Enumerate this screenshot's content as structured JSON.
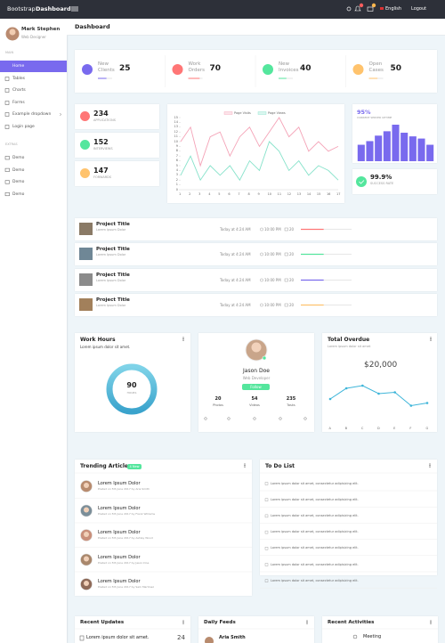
{
  "header": {
    "brand_light": "Bootstrap",
    "brand_bold": "Dashboard",
    "language": "English",
    "logout": "Logout"
  },
  "sidebar": {
    "user_name": "Mark Stephen",
    "user_role": "Web Designer",
    "main_heading": "MAIN",
    "main_items": [
      "Home",
      "Tables",
      "Charts",
      "Forms",
      "Example dropdown",
      "Login page"
    ],
    "extras_heading": "EXTRAS",
    "extras_items": [
      "Demo",
      "Demo",
      "Demo",
      "Demo"
    ]
  },
  "page_title": "Dashboard",
  "stats": [
    {
      "label": "New Clients",
      "value": 25,
      "color": "#796aee",
      "progress": 60
    },
    {
      "label": "Work Orders",
      "value": 70,
      "color": "#ff7676",
      "progress": 80
    },
    {
      "label": "New Invoices",
      "value": 40,
      "color": "#54e69d",
      "progress": 55
    },
    {
      "label": "Open Cases",
      "value": 50,
      "color": "#ffc36d",
      "progress": 60
    }
  ],
  "mini_stats": [
    {
      "value": 234,
      "label": "APPLICATIONS",
      "color": "#ff7676"
    },
    {
      "value": 152,
      "label": "INTERVIEWS",
      "color": "#54e69d"
    },
    {
      "value": 147,
      "label": "FORWARDS",
      "color": "#ffc36d"
    }
  ],
  "line_chart": {
    "type": "line",
    "x": [
      1,
      2,
      3,
      4,
      5,
      6,
      7,
      8,
      9,
      10,
      11,
      12,
      13,
      14,
      15,
      16,
      17
    ],
    "xlim": [
      1,
      17
    ],
    "ylim": [
      0,
      15
    ],
    "yticks": [
      0,
      1,
      2,
      3,
      4,
      5,
      6,
      7,
      8,
      9,
      10,
      11,
      12,
      13,
      14,
      15
    ],
    "series": [
      {
        "name": "Page Visits",
        "color": "#f4a3b7",
        "values": [
          10,
          13,
          5,
          11,
          12,
          7,
          11,
          13,
          9,
          12,
          15,
          11,
          13,
          8,
          10,
          8,
          9
        ]
      },
      {
        "name": "Page Views",
        "color": "#86e2ca",
        "values": [
          3,
          7,
          2,
          5,
          3,
          5,
          2,
          6,
          4,
          10,
          8,
          4,
          6,
          3,
          5,
          4,
          2
        ]
      }
    ]
  },
  "uptime": {
    "type": "bar",
    "value_label": "95%",
    "label": "CURRENT SERVER UPTIME",
    "values": [
      45,
      55,
      70,
      82,
      100,
      78,
      68,
      62,
      45
    ],
    "ylim": [
      0,
      100
    ],
    "color": "#796aee"
  },
  "success": {
    "value_label": "99.9%",
    "label": "SUCCESS RATE"
  },
  "projects": [
    {
      "title": "Project Title",
      "subtitle": "Lorem Ipsum Dolor",
      "date": "Today at 4:24 AM",
      "time": "10:00 PM",
      "comments": 20,
      "progress": 45,
      "color": "#ff7676"
    },
    {
      "title": "Project Title",
      "subtitle": "Lorem Ipsum Dolor",
      "date": "Today at 4:24 AM",
      "time": "10:00 PM",
      "comments": 20,
      "progress": 45,
      "color": "#54e69d"
    },
    {
      "title": "Project Title",
      "subtitle": "Lorem Ipsum Dolor",
      "date": "Today at 4:24 AM",
      "time": "10:00 PM",
      "comments": 20,
      "progress": 45,
      "color": "#796aee"
    },
    {
      "title": "Project Title",
      "subtitle": "Lorem Ipsum Dolor",
      "date": "Today at 4:24 AM",
      "time": "10:00 PM",
      "comments": 20,
      "progress": 45,
      "color": "#ffc36d"
    }
  ],
  "work_hours": {
    "title": "Work Hours",
    "subtitle": "Lorem ipsum dolor sit amet.",
    "value": 90,
    "unit": "HOURS"
  },
  "profile": {
    "name": "Jason Doe",
    "role": "Web Developer",
    "button": "Follow",
    "stats": [
      {
        "value": 20,
        "label": "Photos"
      },
      {
        "value": 54,
        "label": "Videos"
      },
      {
        "value": 235,
        "label": "Tasks"
      }
    ]
  },
  "overdue": {
    "title": "Total Overdue",
    "subtitle": "Lorem ipsum dolor sit amet",
    "amount": "$20,000",
    "chart": {
      "type": "line",
      "categories": [
        "A",
        "B",
        "C",
        "D",
        "E",
        "F",
        "G"
      ],
      "values": [
        4,
        5.6,
        6,
        4.8,
        5,
        3,
        3.4
      ],
      "ylim": [
        0,
        8
      ],
      "color": "#3eb5d9"
    }
  },
  "trending": {
    "title": "Trending Articles",
    "badge": "4 New",
    "items": [
      {
        "title": "Lorem Ipsum Dolor",
        "meta": "Posted on 5th June 2017 by Aria Smith"
      },
      {
        "title": "Lorem Ipsum Dolor",
        "meta": "Posted on 5th June 2017 by Frank Williams"
      },
      {
        "title": "Lorem Ipsum Dolor",
        "meta": "Posted on 5th June 2017 by Ashley Wood"
      },
      {
        "title": "Lorem Ipsum Dolor",
        "meta": "Posted on 5th June 2017 by Jason Doe"
      },
      {
        "title": "Lorem Ipsum Dolor",
        "meta": "Posted on 5th June 2017 by Sam Martinez"
      }
    ]
  },
  "todo": {
    "title": "To Do List",
    "items": [
      "Lorem ipsum dolor sit amet, consectetur adipisicing elit.",
      "Lorem ipsum dolor sit amet, consectetur adipisicing elit.",
      "Lorem ipsum dolor sit amet, consectetur adipisicing elit.",
      "Lorem ipsum dolor sit amet, consectetur adipisicing elit.",
      "Lorem ipsum dolor sit amet, consectetur adipisicing elit.",
      "Lorem ipsum dolor sit amet, consectetur adipisicing elit.",
      "Lorem ipsum dolor sit amet, consectetur adipisicing elit."
    ]
  },
  "bottom": {
    "updates": {
      "title": "Recent Updates",
      "item": "Lorem ipsum dolor sit amet.",
      "number": 24
    },
    "feeds": {
      "title": "Daily Feeds",
      "name": "Aria Smith"
    },
    "activities": {
      "title": "Recent Activities",
      "item": "Meeting"
    }
  }
}
